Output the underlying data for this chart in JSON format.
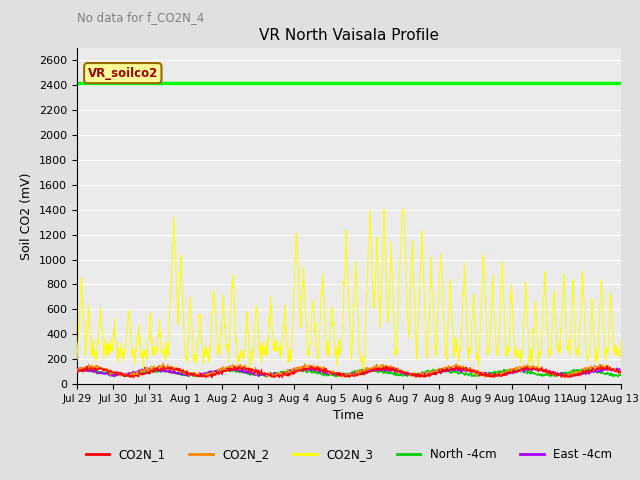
{
  "title": "VR North Vaisala Profile",
  "no_data_text": "No data for f_CO2N_4",
  "ylabel": "Soil CO2 (mV)",
  "xlabel": "Time",
  "ylim": [
    0,
    2700
  ],
  "yticks": [
    0,
    200,
    400,
    600,
    800,
    1000,
    1200,
    1400,
    1600,
    1800,
    2000,
    2200,
    2400,
    2600
  ],
  "x_tick_labels": [
    "Jul 29",
    "Jul 30",
    "Jul 31",
    "Aug 1",
    "Aug 2",
    "Aug 3",
    "Aug 4",
    "Aug 5",
    "Aug 6",
    "Aug 7",
    "Aug 8",
    "Aug 9",
    "Aug 10",
    "Aug 11",
    "Aug 12",
    "Aug 13"
  ],
  "vr_soilco2_value": 2420,
  "vr_soilco2_color": "#00ff00",
  "legend_entries": [
    {
      "label": "CO2N_1",
      "color": "#ff0000"
    },
    {
      "label": "CO2N_2",
      "color": "#ff8800"
    },
    {
      "label": "CO2N_3",
      "color": "#ffff00"
    },
    {
      "label": "North -4cm",
      "color": "#00cc00"
    },
    {
      "label": "East -4cm",
      "color": "#aa00ff"
    }
  ],
  "background_color": "#e0e0e0",
  "plot_bg_color": "#ebebeb",
  "grid_color": "#ffffff",
  "annotation_box_facecolor": "#ffff99",
  "annotation_text_color": "#990000",
  "annotation_border_color": "#996600"
}
